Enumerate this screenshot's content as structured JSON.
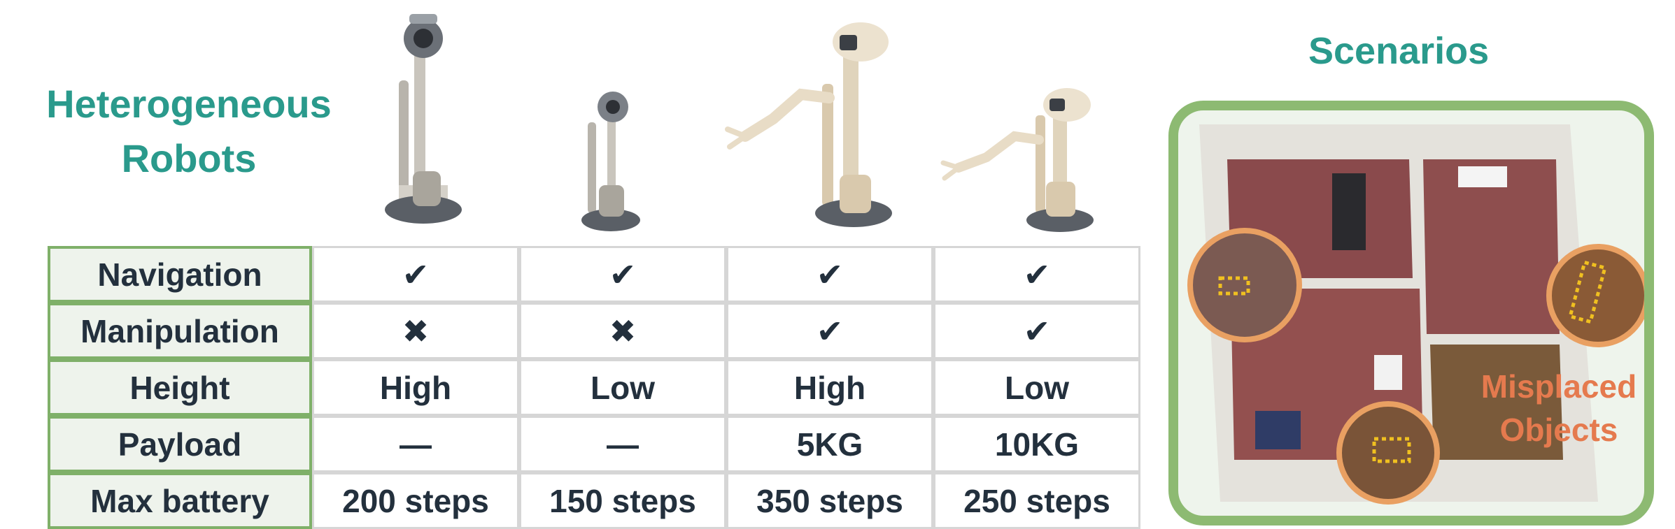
{
  "title_left": {
    "line1": "Heterogeneous",
    "line2": "Robots"
  },
  "title_right": "Scenarios",
  "rows": [
    {
      "label": "Navigation",
      "values": [
        "✔",
        "✔",
        "✔",
        "✔"
      ]
    },
    {
      "label": "Manipulation",
      "values": [
        "✖",
        "✖",
        "✔",
        "✔"
      ]
    },
    {
      "label": "Height",
      "values": [
        "High",
        "Low",
        "High",
        "Low"
      ]
    },
    {
      "label": "Payload",
      "values": [
        "—",
        "—",
        "5KG",
        "10KG"
      ]
    },
    {
      "label": "Max battery",
      "values": [
        "200 steps",
        "150 steps",
        "350 steps",
        "250 steps"
      ]
    }
  ],
  "scenario_label": {
    "line1": "Misplaced",
    "line2": "Objects"
  },
  "colors": {
    "teal": "#2a9a8c",
    "green_frame": "#8dba72",
    "orange": "#e9a062",
    "label_orange": "#e57a4e",
    "text_dark": "#23303d"
  }
}
